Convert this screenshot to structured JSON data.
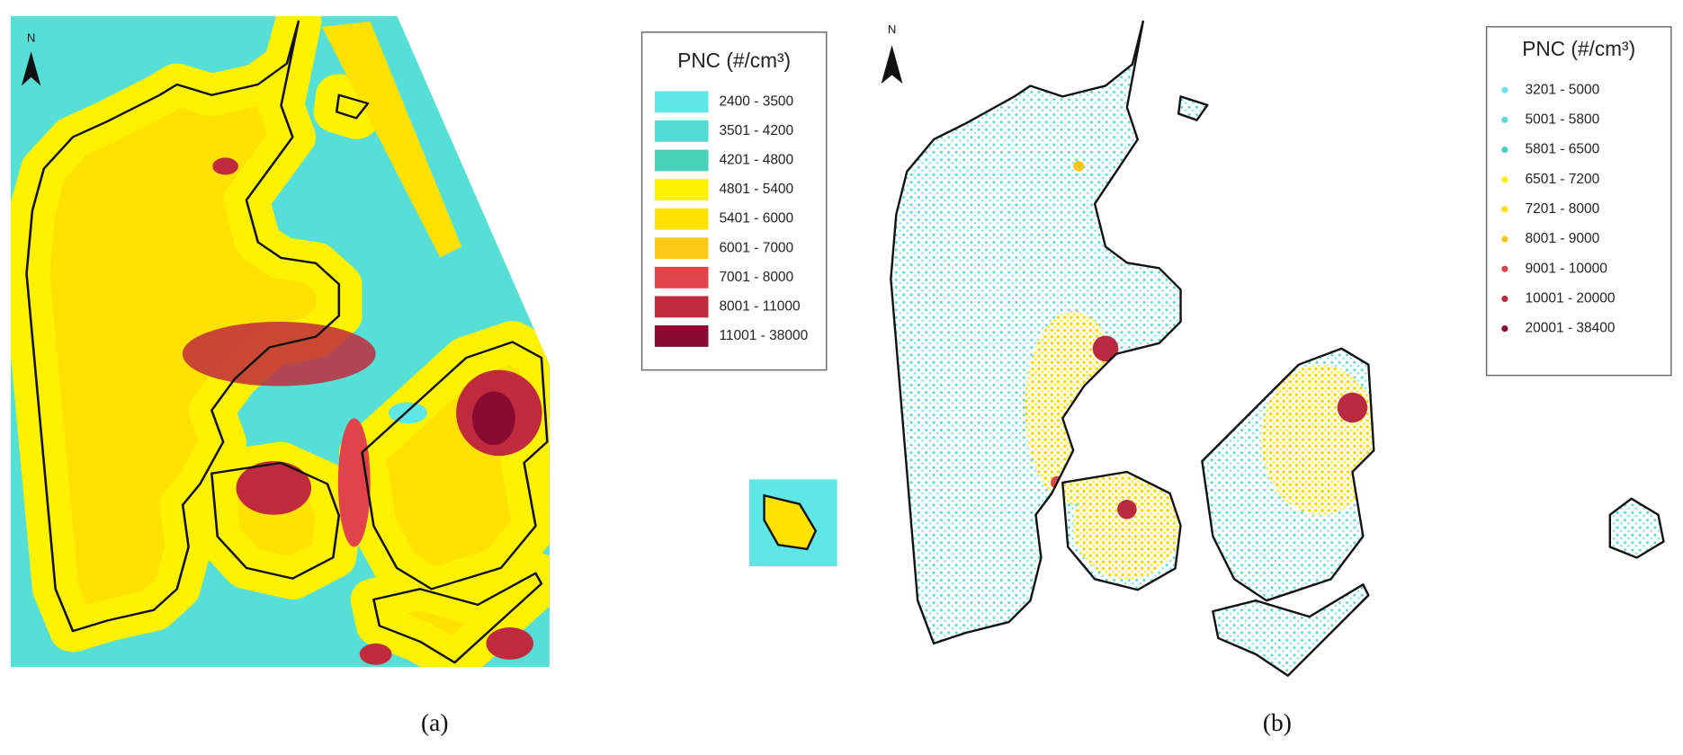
{
  "panels": [
    {
      "label": "(a)",
      "north": "N",
      "legend": {
        "title": "PNC (#/cm³)",
        "items": [
          {
            "label": "2400 - 3500",
            "color": "#5fe6e6"
          },
          {
            "label": "3501 - 4200",
            "color": "#52dcd3"
          },
          {
            "label": "4201 - 4800",
            "color": "#48d1bb"
          },
          {
            "label": "4801 - 5400",
            "color": "#fff200"
          },
          {
            "label": "5401 - 6000",
            "color": "#ffe100"
          },
          {
            "label": "6001 - 7000",
            "color": "#fcc918"
          },
          {
            "label": "7001 - 8000",
            "color": "#e0434a"
          },
          {
            "label": "8001 - 11000",
            "color": "#bf2a3d"
          },
          {
            "label": "11001 - 38000",
            "color": "#8a0b32"
          }
        ]
      }
    },
    {
      "label": "(b)",
      "north": "N",
      "legend": {
        "title": "PNC (#/cm³)",
        "items": [
          {
            "label": "3201 - 5000",
            "color": "#6fe0ea"
          },
          {
            "label": "5001 - 5800",
            "color": "#5ad8d8"
          },
          {
            "label": "5801 - 6500",
            "color": "#49cfc0"
          },
          {
            "label": "6501 - 7200",
            "color": "#fff200"
          },
          {
            "label": "7201 - 8000",
            "color": "#ffe100"
          },
          {
            "label": "8001 - 9000",
            "color": "#f5c518"
          },
          {
            "label": "9001 - 10000",
            "color": "#d9434b"
          },
          {
            "label": "10001 - 20000",
            "color": "#b92a40"
          },
          {
            "label": "20001 - 38400",
            "color": "#8a0d33"
          }
        ]
      }
    }
  ]
}
